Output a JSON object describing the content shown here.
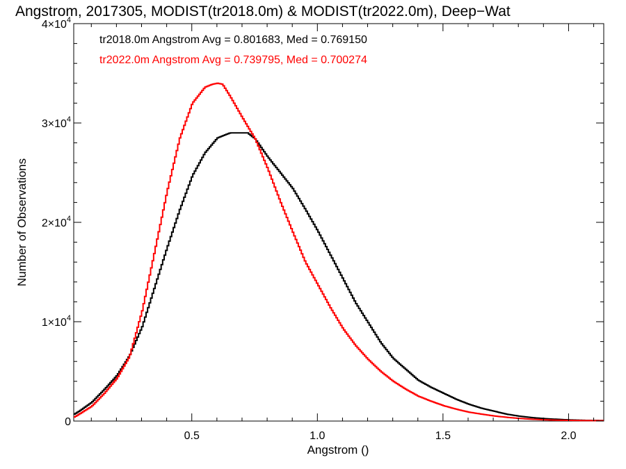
{
  "chart_data": {
    "type": "line",
    "title": "Angstrom, 2017305, MODIST(tr2018.0m) & MODIST(tr2022.0m), Deep−Wat",
    "xlabel": "Angstrom ()",
    "ylabel": "Number of Observations",
    "xlim": [
      0.03,
      2.14
    ],
    "ylim": [
      0,
      40000
    ],
    "x_ticks": [
      {
        "value": 0.5,
        "label": "0.5"
      },
      {
        "value": 1.0,
        "label": "1.0"
      },
      {
        "value": 1.5,
        "label": "1.5"
      },
      {
        "value": 2.0,
        "label": "2.0"
      }
    ],
    "y_ticks": [
      {
        "value": 0,
        "base": "0",
        "exp": ""
      },
      {
        "value": 10000,
        "base": "1×10",
        "exp": "4"
      },
      {
        "value": 20000,
        "base": "2×10",
        "exp": "4"
      },
      {
        "value": 30000,
        "base": "3×10",
        "exp": "4"
      },
      {
        "value": 40000,
        "base": "4×10",
        "exp": "4"
      }
    ],
    "grid": false,
    "legend_placement": "top-left",
    "series": [
      {
        "label": "tr2018.0m Angstrom Avg = 0.801683, Med = 0.769150",
        "color": "#000000",
        "x": [
          0.03,
          0.05,
          0.1,
          0.15,
          0.2,
          0.25,
          0.3,
          0.35,
          0.4,
          0.45,
          0.5,
          0.55,
          0.6,
          0.65,
          0.7,
          0.72,
          0.75,
          0.8,
          0.85,
          0.9,
          0.95,
          1.0,
          1.05,
          1.1,
          1.15,
          1.2,
          1.25,
          1.3,
          1.35,
          1.4,
          1.45,
          1.5,
          1.55,
          1.6,
          1.65,
          1.7,
          1.75,
          1.8,
          1.85,
          1.9,
          1.95,
          2.0,
          2.05,
          2.1,
          2.14
        ],
        "y": [
          700,
          1000,
          1900,
          3200,
          4600,
          6600,
          9500,
          13500,
          17500,
          21300,
          24700,
          27000,
          28500,
          29000,
          29000,
          29000,
          28400,
          26600,
          25000,
          23400,
          21300,
          19100,
          16700,
          14300,
          11900,
          9900,
          7900,
          6300,
          5200,
          4100,
          3400,
          2800,
          2200,
          1700,
          1300,
          1000,
          700,
          500,
          350,
          250,
          180,
          120,
          80,
          60,
          50
        ]
      },
      {
        "label": "tr2022.0m Angstrom Avg = 0.739795, Med = 0.700274",
        "color": "#ff0000",
        "x": [
          0.03,
          0.05,
          0.1,
          0.15,
          0.2,
          0.25,
          0.3,
          0.35,
          0.4,
          0.45,
          0.5,
          0.55,
          0.58,
          0.6,
          0.62,
          0.65,
          0.7,
          0.75,
          0.8,
          0.85,
          0.9,
          0.95,
          1.0,
          1.05,
          1.1,
          1.15,
          1.2,
          1.25,
          1.3,
          1.35,
          1.4,
          1.45,
          1.5,
          1.55,
          1.6,
          1.65,
          1.7,
          1.75,
          1.8,
          1.85,
          1.9,
          1.95,
          2.0,
          2.05,
          2.1,
          2.14
        ],
        "y": [
          400,
          700,
          1500,
          2800,
          4300,
          6500,
          11100,
          17100,
          23200,
          28500,
          32000,
          33600,
          33900,
          34000,
          33900,
          32700,
          30500,
          28400,
          25400,
          22100,
          19000,
          16000,
          13700,
          11400,
          9300,
          7600,
          6200,
          5000,
          4000,
          3200,
          2500,
          2000,
          1550,
          1200,
          900,
          700,
          520,
          380,
          270,
          190,
          130,
          90,
          70,
          55,
          45,
          40
        ]
      }
    ]
  }
}
